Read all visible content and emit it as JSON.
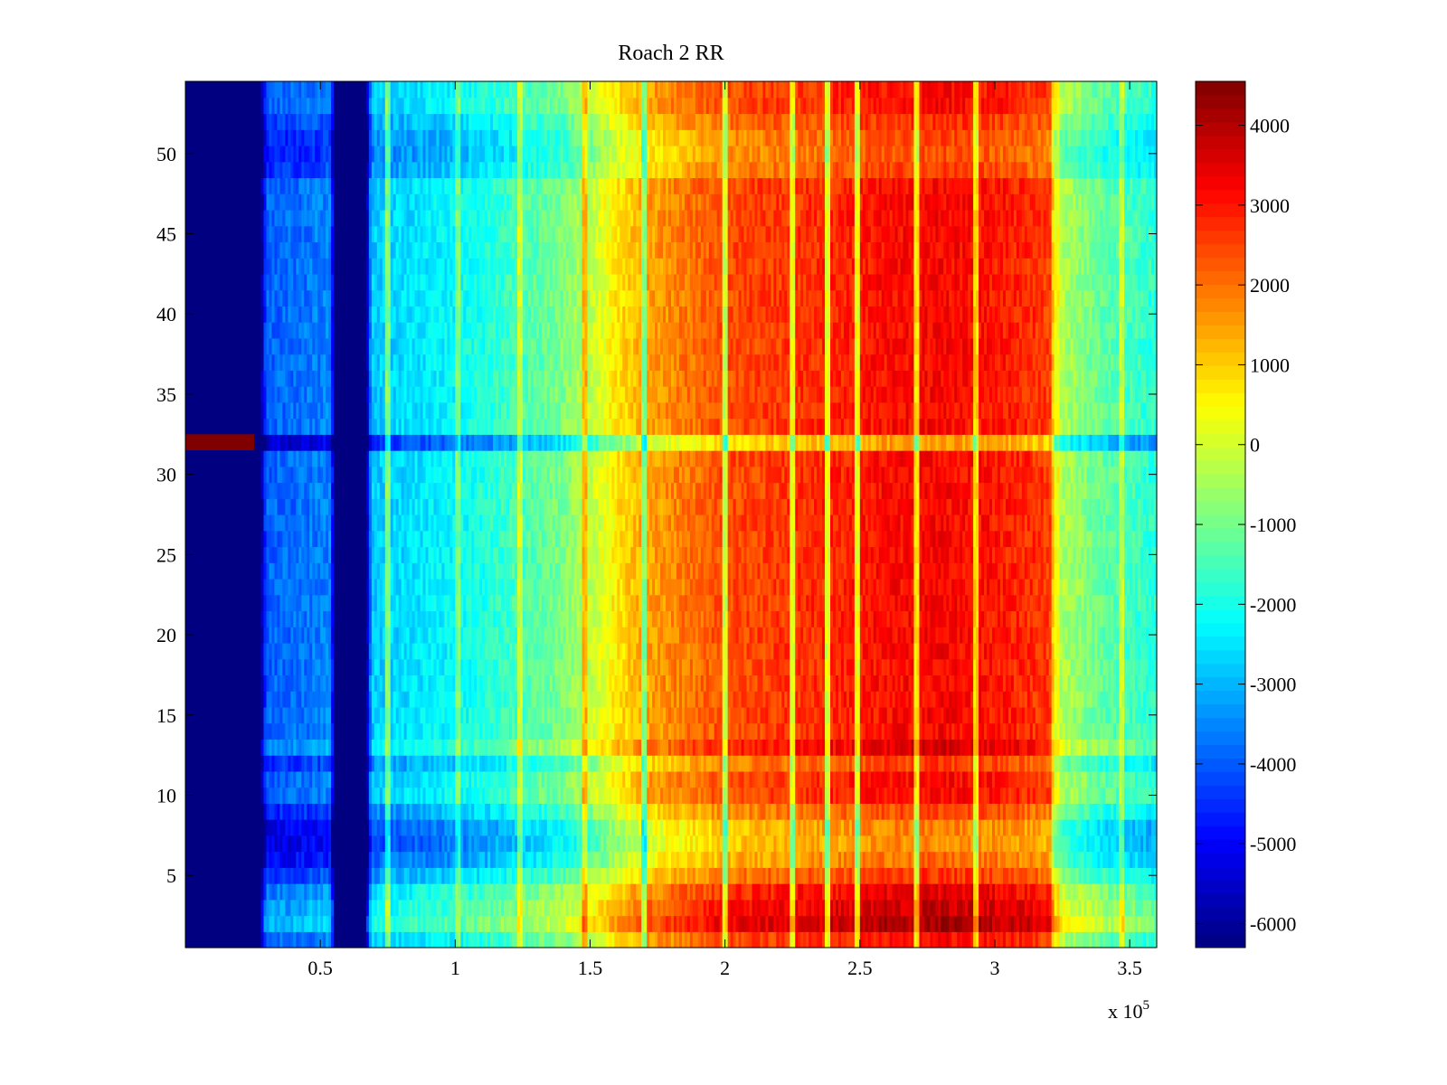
{
  "chart_data": {
    "type": "heatmap",
    "title": "Roach 2 RR",
    "xlabel": "",
    "ylabel": "",
    "x_multiplier_label": "x 10",
    "x_multiplier_exponent": "5",
    "xlim": [
      0,
      360000
    ],
    "ylim": [
      0.5,
      54.5
    ],
    "x_ticks": [
      {
        "value": 0.5,
        "label": "0.5"
      },
      {
        "value": 1,
        "label": "1"
      },
      {
        "value": 1.5,
        "label": "1.5"
      },
      {
        "value": 2,
        "label": "2"
      },
      {
        "value": 2.5,
        "label": "2.5"
      },
      {
        "value": 3,
        "label": "3"
      },
      {
        "value": 3.5,
        "label": "3.5"
      }
    ],
    "y_ticks": [
      {
        "value": 5,
        "label": "5"
      },
      {
        "value": 10,
        "label": "10"
      },
      {
        "value": 15,
        "label": "15"
      },
      {
        "value": 20,
        "label": "20"
      },
      {
        "value": 25,
        "label": "25"
      },
      {
        "value": 30,
        "label": "30"
      },
      {
        "value": 35,
        "label": "35"
      },
      {
        "value": 40,
        "label": "40"
      },
      {
        "value": 45,
        "label": "45"
      },
      {
        "value": 50,
        "label": "50"
      }
    ],
    "colorbar": {
      "colormap": "jet",
      "range": [
        -6300,
        4550
      ],
      "ticks": [
        {
          "value": 4000,
          "label": "4000"
        },
        {
          "value": 3000,
          "label": "3000"
        },
        {
          "value": 2000,
          "label": "2000"
        },
        {
          "value": 1000,
          "label": "1000"
        },
        {
          "value": 0,
          "label": "0"
        },
        {
          "value": -1000,
          "label": "-1000"
        },
        {
          "value": -2000,
          "label": "-2000"
        },
        {
          "value": -3000,
          "label": "-3000"
        },
        {
          "value": -4000,
          "label": "-4000"
        },
        {
          "value": -5000,
          "label": "-5000"
        },
        {
          "value": -6000,
          "label": "-6000"
        }
      ]
    },
    "column_profile": [
      {
        "x": 0,
        "v": -6300
      },
      {
        "x": 28000,
        "v": -6300
      },
      {
        "x": 30000,
        "v": -3900
      },
      {
        "x": 40000,
        "v": -3800
      },
      {
        "x": 50000,
        "v": -3600
      },
      {
        "x": 54000,
        "v": -3500
      },
      {
        "x": 55000,
        "v": -6300
      },
      {
        "x": 67000,
        "v": -6300
      },
      {
        "x": 69000,
        "v": -2800
      },
      {
        "x": 80000,
        "v": -2600
      },
      {
        "x": 100000,
        "v": -2200
      },
      {
        "x": 120000,
        "v": -1600
      },
      {
        "x": 140000,
        "v": -900
      },
      {
        "x": 150000,
        "v": -200
      },
      {
        "x": 160000,
        "v": 700
      },
      {
        "x": 170000,
        "v": 1400
      },
      {
        "x": 185000,
        "v": 1900
      },
      {
        "x": 200000,
        "v": 2400
      },
      {
        "x": 220000,
        "v": 2600
      },
      {
        "x": 240000,
        "v": 2800
      },
      {
        "x": 260000,
        "v": 3100
      },
      {
        "x": 280000,
        "v": 3200
      },
      {
        "x": 300000,
        "v": 3000
      },
      {
        "x": 315000,
        "v": 2700
      },
      {
        "x": 322000,
        "v": 2500
      },
      {
        "x": 324000,
        "v": -300
      },
      {
        "x": 340000,
        "v": -1200
      },
      {
        "x": 360000,
        "v": -1800
      }
    ],
    "row_offsets": [
      {
        "row": 2,
        "offset": 900
      },
      {
        "row": 3,
        "offset": 600
      },
      {
        "row": 4,
        "offset": 300
      },
      {
        "row": 5,
        "offset": -500
      },
      {
        "row": 6,
        "offset": -1100
      },
      {
        "row": 7,
        "offset": -1400
      },
      {
        "row": 8,
        "offset": -1300
      },
      {
        "row": 9,
        "offset": -700
      },
      {
        "row": 12,
        "offset": -600
      },
      {
        "row": 13,
        "offset": 400
      },
      {
        "row": 32,
        "offset": -1600
      },
      {
        "row": 49,
        "offset": -600
      },
      {
        "row": 50,
        "offset": -800
      },
      {
        "row": 51,
        "offset": -700
      },
      {
        "row": 52,
        "offset": -400
      }
    ],
    "vertical_streaks": [
      {
        "x": 75000,
        "delta": 1800
      },
      {
        "x": 101000,
        "delta": 1200
      },
      {
        "x": 124000,
        "delta": 1400
      },
      {
        "x": 148000,
        "delta": 1600
      },
      {
        "x": 170000,
        "delta": -2200
      },
      {
        "x": 200000,
        "delta": -2500
      },
      {
        "x": 225000,
        "delta": -2300
      },
      {
        "x": 238000,
        "delta": -2600
      },
      {
        "x": 249000,
        "delta": -2600
      },
      {
        "x": 271000,
        "delta": -2400
      },
      {
        "x": 293000,
        "delta": -2200
      },
      {
        "x": 322000,
        "delta": -1500
      },
      {
        "x": 347000,
        "delta": 1200
      }
    ],
    "anomalies": [
      {
        "x_start": 0,
        "x_end": 25500,
        "row": 32,
        "value": 4550
      }
    ]
  }
}
